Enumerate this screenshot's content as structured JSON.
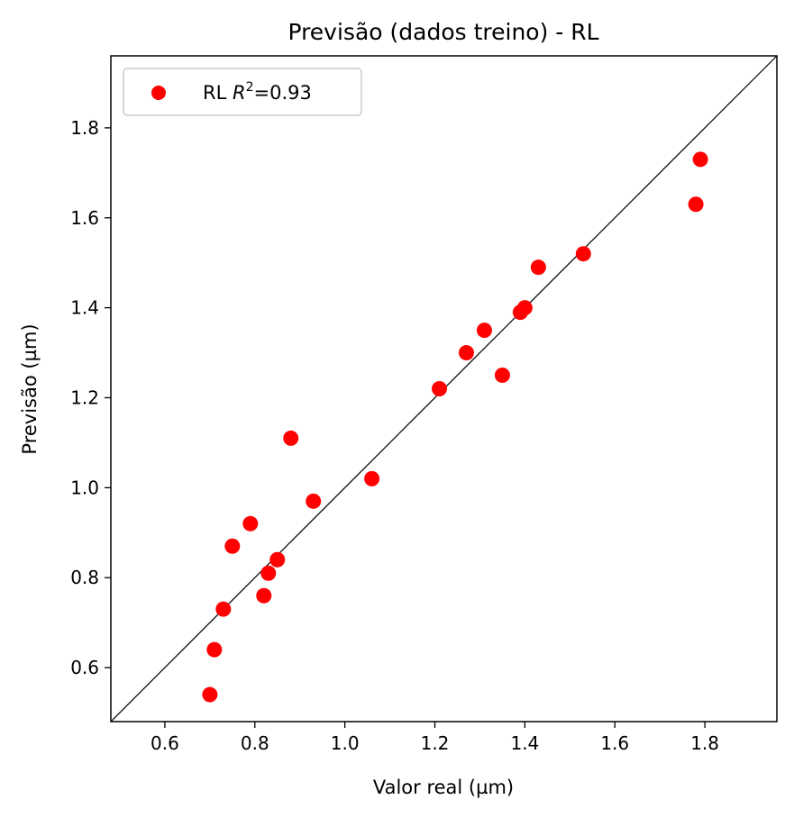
{
  "chart_data": {
    "type": "scatter",
    "title": "Previsão (dados treino) - RL",
    "xlabel": "Valor real (µm)",
    "ylabel": "Previsão (µm)",
    "xlim": [
      0.48,
      1.96
    ],
    "ylim": [
      0.48,
      1.96
    ],
    "xticks": [
      "0.6",
      "0.8",
      "1.0",
      "1.2",
      "1.4",
      "1.6",
      "1.8"
    ],
    "yticks": [
      "0.6",
      "0.8",
      "1.0",
      "1.2",
      "1.4",
      "1.6",
      "1.8"
    ],
    "grid": false,
    "legend_position": "top-left",
    "legend": {
      "prefix": "RL ",
      "symbol": "R",
      "superscript": "2",
      "suffix": "=0.93"
    },
    "reference_line": "y = x",
    "series": [
      {
        "name": "RL R²=0.93",
        "color": "#ff0000",
        "points": [
          {
            "x": 0.7,
            "y": 0.54
          },
          {
            "x": 0.71,
            "y": 0.64
          },
          {
            "x": 0.73,
            "y": 0.73
          },
          {
            "x": 0.75,
            "y": 0.87
          },
          {
            "x": 0.79,
            "y": 0.92
          },
          {
            "x": 0.82,
            "y": 0.76
          },
          {
            "x": 0.83,
            "y": 0.81
          },
          {
            "x": 0.85,
            "y": 0.84
          },
          {
            "x": 0.88,
            "y": 1.11
          },
          {
            "x": 0.93,
            "y": 0.97
          },
          {
            "x": 1.06,
            "y": 1.02
          },
          {
            "x": 1.21,
            "y": 1.22
          },
          {
            "x": 1.27,
            "y": 1.3
          },
          {
            "x": 1.31,
            "y": 1.35
          },
          {
            "x": 1.35,
            "y": 1.25
          },
          {
            "x": 1.39,
            "y": 1.39
          },
          {
            "x": 1.4,
            "y": 1.4
          },
          {
            "x": 1.43,
            "y": 1.49
          },
          {
            "x": 1.53,
            "y": 1.52
          },
          {
            "x": 1.78,
            "y": 1.63
          },
          {
            "x": 1.79,
            "y": 1.73
          }
        ]
      }
    ]
  }
}
